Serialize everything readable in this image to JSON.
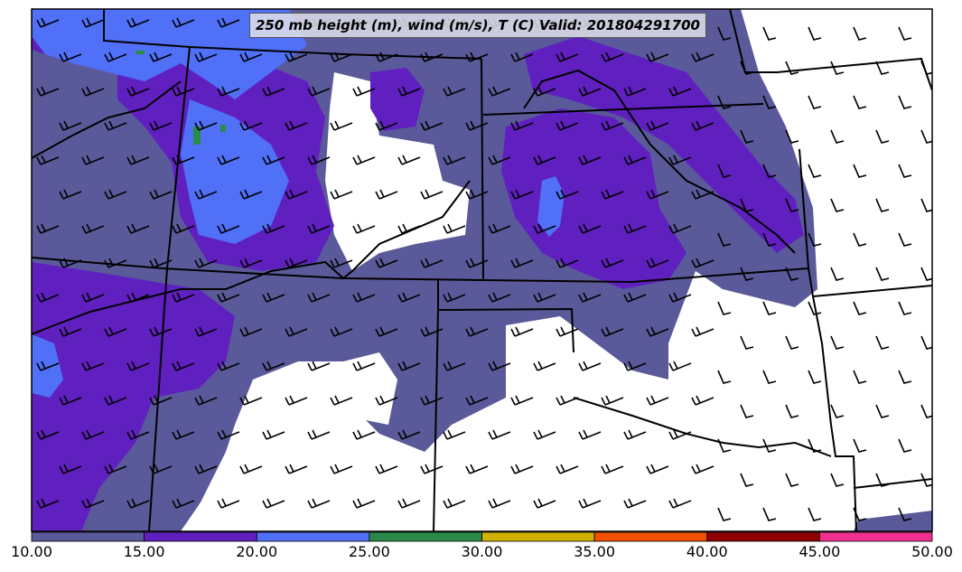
{
  "title": "250 mb height (m), wind (m/s), T (C) Valid: 201804291700",
  "colorbar": {
    "ticks": [
      "10.00",
      "15.00",
      "20.00",
      "25.00",
      "30.00",
      "35.00",
      "40.00",
      "45.00",
      "50.00"
    ],
    "colors": [
      "#5a5a9a",
      "#6020c0",
      "#5070f8",
      "#2a8a48",
      "#d0b000",
      "#f05000",
      "#900000",
      "#f03090"
    ]
  },
  "legend": {
    "field_colors": {
      "10-15": "#5a5a9a",
      "15-20": "#6020c0",
      "20-25": "#5070f8",
      "25-30": "#2a8a48"
    }
  }
}
